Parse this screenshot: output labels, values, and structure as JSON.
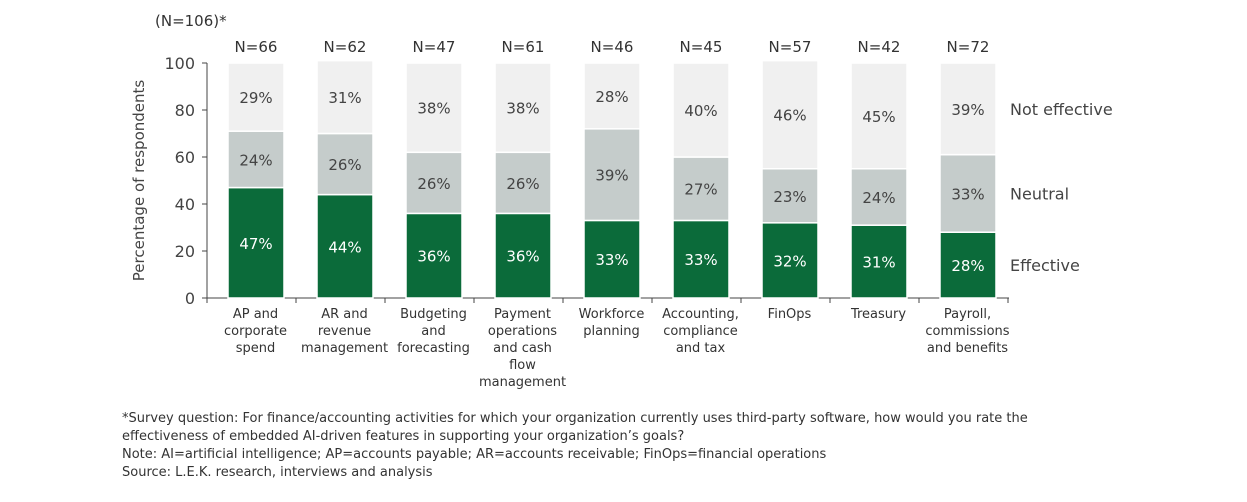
{
  "chart_data": {
    "type": "bar",
    "stacked": true,
    "subtitle": "(N=106)*",
    "ylabel": "Percentage of respondents",
    "ylim": [
      0,
      100
    ],
    "yticks": [
      0,
      20,
      40,
      60,
      80,
      100
    ],
    "grid": false,
    "legend_placement": "right",
    "categories": [
      [
        "AP and",
        "corporate",
        "spend"
      ],
      [
        "AR and",
        "revenue",
        "management"
      ],
      [
        "Budgeting",
        "and",
        "forecasting"
      ],
      [
        "Payment",
        "operations",
        "and cash",
        "flow",
        "management"
      ],
      [
        "Workforce",
        "planning"
      ],
      [
        "Accounting,",
        "compliance",
        "and tax"
      ],
      [
        "FinOps"
      ],
      [
        "Treasury"
      ],
      [
        "Payroll,",
        "commissions",
        "and benefits"
      ]
    ],
    "n_labels": [
      "N=66",
      "N=62",
      "N=47",
      "N=61",
      "N=46",
      "N=45",
      "N=57",
      "N=42",
      "N=72"
    ],
    "series": [
      {
        "name": "Effective",
        "color": "#0b6b3a",
        "label_color": "#ffffff",
        "values": [
          47,
          44,
          36,
          36,
          33,
          33,
          32,
          31,
          28
        ]
      },
      {
        "name": "Neutral",
        "color": "#c5cccb",
        "label_color": "#444444",
        "values": [
          24,
          26,
          26,
          26,
          39,
          27,
          23,
          24,
          33
        ]
      },
      {
        "name": "Not effective",
        "color": "#f0f0f0",
        "label_color": "#444444",
        "values": [
          29,
          31,
          38,
          38,
          28,
          40,
          46,
          45,
          39
        ]
      }
    ]
  },
  "notes": [
    "*Survey question: For finance/accounting activities for which your organization currently uses third-party software, how would you rate the",
    "effectiveness of embedded AI-driven features in supporting your organization’s goals?",
    "Note: AI=artificial intelligence; AP=accounts payable; AR=accounts receivable; FinOps=financial operations",
    "Source: L.E.K. research, interviews and analysis"
  ]
}
